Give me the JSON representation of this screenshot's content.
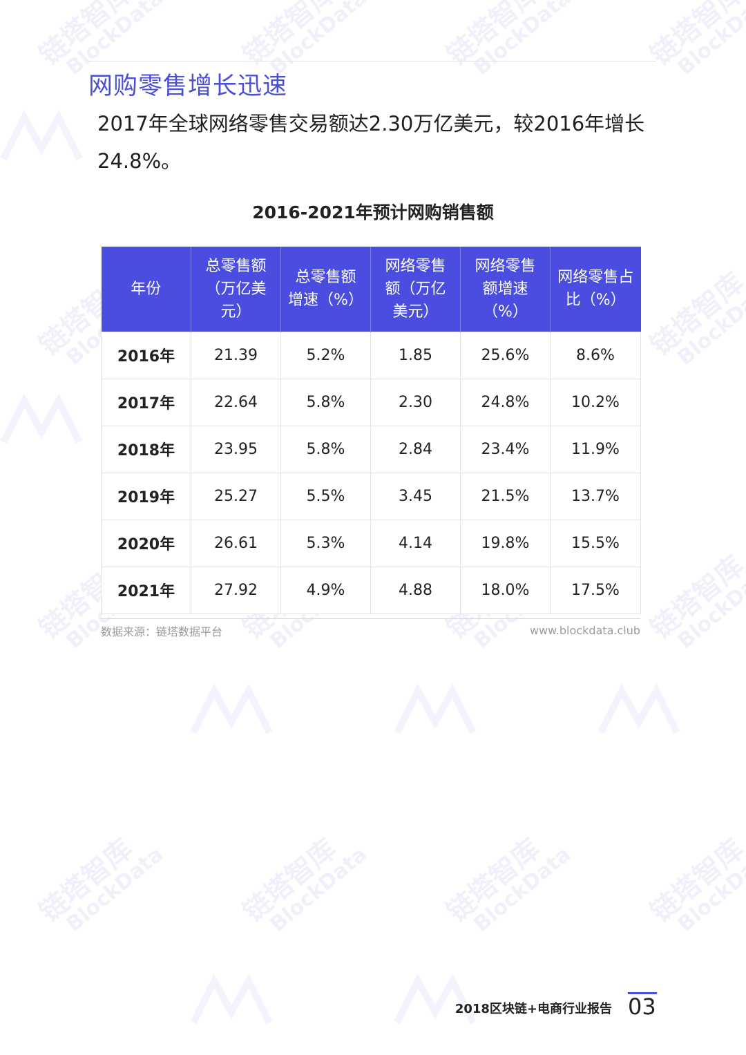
{
  "watermark": {
    "cn": "链塔智库",
    "en": "BlockData",
    "logo_icon": "blockdata-logo-icon",
    "color": "#3b3fd8"
  },
  "header": {
    "title": "网购零售增长迅速"
  },
  "intro": {
    "text": "2017年全球网络零售交易额达2.30万亿美元，较2016年增长24.8%。"
  },
  "table": {
    "title": "2016-2021年预计网购销售额",
    "header_color": "#4b4de0",
    "columns": [
      "年份",
      "总零售额（万亿美元）",
      "总零售额增速（%）",
      "网络零售额（万亿美元）",
      "网络零售额增速（%）",
      "网络零售占比（%）"
    ],
    "rows": [
      [
        "2016年",
        "21.39",
        "5.2%",
        "1.85",
        "25.6%",
        "8.6%"
      ],
      [
        "2017年",
        "22.64",
        "5.8%",
        "2.30",
        "24.8%",
        "10.2%"
      ],
      [
        "2018年",
        "23.95",
        "5.8%",
        "2.84",
        "23.4%",
        "11.9%"
      ],
      [
        "2019年",
        "25.27",
        "5.5%",
        "3.45",
        "21.5%",
        "13.7%"
      ],
      [
        "2020年",
        "26.61",
        "5.3%",
        "4.14",
        "19.8%",
        "15.5%"
      ],
      [
        "2021年",
        "27.92",
        "4.9%",
        "4.88",
        "18.0%",
        "17.5%"
      ]
    ],
    "source": "数据来源：链塔数据平台",
    "site": "www.blockdata.club"
  },
  "footer": {
    "report_title": "2018区块链+电商行业报告",
    "page_number": "03",
    "accent_color": "#4b4de0"
  }
}
